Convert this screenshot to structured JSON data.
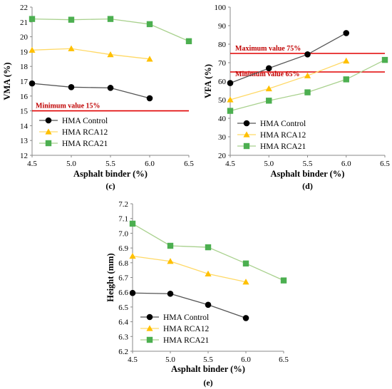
{
  "chart_data": [
    {
      "panel": "(c)",
      "type": "line",
      "xlabel": "Asphalt binder (%)",
      "ylabel": "VMA (%)",
      "xlim": [
        4.5,
        6.5
      ],
      "ylim": [
        12,
        22
      ],
      "xticks": [
        "4.5",
        "5.0",
        "5.5",
        "6.0",
        "6.5"
      ],
      "yticks": [
        "12",
        "13",
        "14",
        "15",
        "16",
        "17",
        "18",
        "19",
        "20",
        "21",
        "22"
      ],
      "legend_position": "bottom-left",
      "series": [
        {
          "name": "HMA Control",
          "x": [
            4.5,
            5.0,
            5.5,
            6.0
          ],
          "y": [
            16.85,
            16.6,
            16.55,
            15.85
          ],
          "color": "#000000",
          "line_color": "#555555",
          "marker": "circle"
        },
        {
          "name": "HMA RCA12",
          "x": [
            4.5,
            5.0,
            6.0
          ],
          "y": [
            19.1,
            19.2,
            18.5
          ],
          "x_mid": [
            5.5
          ],
          "y_mid": [
            18.8
          ],
          "color": "#ffc000",
          "line_color": "#ffd966",
          "marker": "triangle"
        },
        {
          "name": "HMA RCA21",
          "x": [
            4.5,
            5.0,
            5.5,
            6.0,
            6.5
          ],
          "y": [
            21.2,
            21.15,
            21.2,
            20.85,
            19.7
          ],
          "color": "#4caf50",
          "line_color": "#a9d18e",
          "marker": "square"
        }
      ],
      "reference_lines": [
        {
          "label": "Minimum value 15%",
          "y": 15,
          "color": "#e00000"
        }
      ]
    },
    {
      "panel": "(d)",
      "type": "line",
      "xlabel": "Asphalt binder (%)",
      "ylabel": "VFA (%)",
      "xlim": [
        4.5,
        6.5
      ],
      "ylim": [
        20,
        100
      ],
      "xticks": [
        "4.5",
        "5.0",
        "5.5",
        "6.0",
        "6.5"
      ],
      "yticks": [
        "20",
        "30",
        "40",
        "50",
        "60",
        "70",
        "80",
        "90",
        "100"
      ],
      "legend_position": "bottom-left",
      "series": [
        {
          "name": "HMA Control",
          "x": [
            4.5,
            5.0,
            5.5,
            6.0
          ],
          "y": [
            59,
            67,
            74.5,
            86
          ],
          "color": "#000000",
          "line_color": "#555555",
          "marker": "circle"
        },
        {
          "name": "HMA RCA12",
          "x": [
            4.5,
            5.0,
            5.5,
            6.0
          ],
          "y": [
            50,
            56,
            63,
            71
          ],
          "color": "#ffc000",
          "line_color": "#ffd966",
          "marker": "triangle"
        },
        {
          "name": "HMA RCA21",
          "x": [
            4.5,
            5.0,
            5.5,
            6.0,
            6.5
          ],
          "y": [
            44,
            49.5,
            54,
            61,
            71.5
          ],
          "color": "#4caf50",
          "line_color": "#a9d18e",
          "marker": "square"
        }
      ],
      "reference_lines": [
        {
          "label": "Maximum value 75%",
          "y": 75,
          "color": "#e00000"
        },
        {
          "label": "Minimum value 65%",
          "y": 65,
          "color": "#e00000"
        }
      ]
    },
    {
      "panel": "(e)",
      "type": "line",
      "xlabel": "Asphalt binder (%)",
      "ylabel": "Height (mm)",
      "xlim": [
        4.5,
        6.5
      ],
      "ylim": [
        6.2,
        7.2
      ],
      "xticks": [
        "4.5",
        "5.0",
        "5.5",
        "6.0",
        "6.5"
      ],
      "yticks": [
        "6.2",
        "6.3",
        "6.4",
        "6.5",
        "6.6",
        "6.7",
        "6.8",
        "6.9",
        "7.0",
        "7.1",
        "7.2"
      ],
      "legend_position": "bottom-left",
      "series": [
        {
          "name": "HMA Control",
          "x": [
            4.5,
            5.0,
            5.5,
            6.0
          ],
          "y": [
            6.595,
            6.59,
            6.515,
            6.425
          ],
          "color": "#000000",
          "line_color": "#555555",
          "marker": "circle"
        },
        {
          "name": "HMA RCA12",
          "x": [
            4.5,
            5.0,
            5.5,
            6.0
          ],
          "y": [
            6.845,
            6.81,
            6.725,
            6.67
          ],
          "color": "#ffc000",
          "line_color": "#ffd966",
          "marker": "triangle"
        },
        {
          "name": "HMA RCA21",
          "x": [
            4.5,
            5.0,
            5.5,
            6.0,
            6.5
          ],
          "y": [
            7.065,
            6.915,
            6.905,
            6.795,
            6.68
          ],
          "color": "#4caf50",
          "line_color": "#a9d18e",
          "marker": "square"
        }
      ],
      "reference_lines": []
    }
  ]
}
